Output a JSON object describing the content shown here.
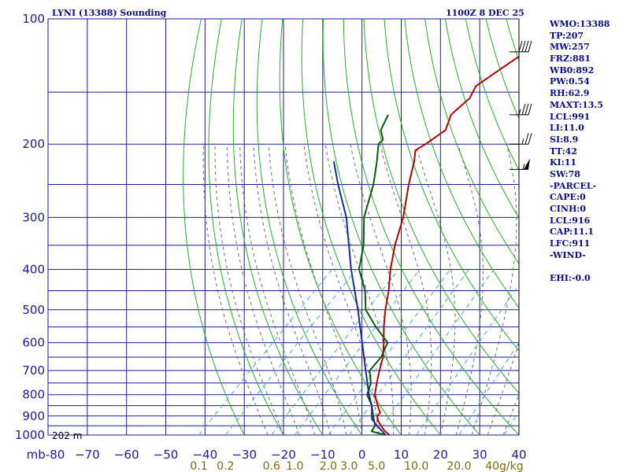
{
  "title": "LYNI (13388) Sounding",
  "datetime": "1100Z  8 DEC 25",
  "station_elevation": "202 m",
  "colors": {
    "grid": "#1a1a9a",
    "dry_adiabat": "#2ea82e",
    "moist_adiabat": "#6a6a6a",
    "mixing_ratio": "#4aa6d6",
    "temperature": "#b00000",
    "dewpoint": "#0a5a0a",
    "parcel": "#1a2a9a",
    "text": "#0a0a8a"
  },
  "indices": [
    "WMO:13388",
    "TP:207",
    "MW:257",
    "FRZ:881",
    "WB0:892",
    "PW:0.54",
    "RH:62.9",
    "MAXT:13.5",
    "LCL:991",
    "LI:11.0",
    "SI:8.9",
    "TT:42",
    "KI:11",
    "SW:78",
    "-PARCEL-",
    "CAPE:0",
    "CINH:0",
    "LCL:916",
    "CAP:11.1",
    "LFC:911",
    "-WIND-",
    "",
    "EHI:-0.0"
  ],
  "chart_data": {
    "type": "line",
    "diagram": "skew-t log-p",
    "title": "LYNI (13388) Sounding",
    "subtitle": "1100Z  8 DEC 25",
    "ylabel": "mb",
    "xlabel": "",
    "y_scale": "log",
    "ylim": [
      1000,
      100
    ],
    "xlim": [
      -80,
      40
    ],
    "pressure_ticks": [
      100,
      200,
      300,
      400,
      500,
      600,
      700,
      800,
      900,
      1000
    ],
    "pressure_tick_labels": [
      "100",
      "200",
      "300",
      "400",
      "500",
      "600",
      "700",
      "800",
      "900",
      "1000"
    ],
    "temperature_ticks": [
      -80,
      -70,
      -60,
      -50,
      -40,
      -30,
      -20,
      -10,
      0,
      10,
      20,
      30,
      40
    ],
    "temperature_tick_labels": [
      "mb-80",
      "−70",
      "−60",
      "−50",
      "−40",
      "−30",
      "−20",
      "−10",
      "0",
      "10",
      "20",
      "30",
      "40"
    ],
    "mixing_ratio_labels": [
      "0.1",
      "0.2",
      "0.6",
      "1.0",
      "2.0",
      "3.0",
      "5.0",
      "10.0",
      "20.0",
      "40g/kg"
    ],
    "mixing_ratio_values": [
      0.1,
      0.2,
      0.6,
      1.0,
      2.0,
      3.0,
      5.0,
      10.0,
      20.0,
      40.0
    ],
    "series": [
      {
        "key": "temperature",
        "values": [
          {
            "p": 1000,
            "t": 7.0
          },
          {
            "p": 975,
            "t": 4.5
          },
          {
            "p": 950,
            "t": 2.5
          },
          {
            "p": 925,
            "t": 0.5
          },
          {
            "p": 900,
            "t": -1.0
          },
          {
            "p": 885,
            "t": -1.0
          },
          {
            "p": 850,
            "t": -3.5
          },
          {
            "p": 800,
            "t": -7.0
          },
          {
            "p": 750,
            "t": -9.5
          },
          {
            "p": 700,
            "t": -12.0
          },
          {
            "p": 650,
            "t": -14.5
          },
          {
            "p": 600,
            "t": -18.0
          },
          {
            "p": 550,
            "t": -22.0
          },
          {
            "p": 500,
            "t": -26.0
          },
          {
            "p": 450,
            "t": -30.0
          },
          {
            "p": 400,
            "t": -35.0
          },
          {
            "p": 350,
            "t": -40.0
          },
          {
            "p": 300,
            "t": -45.0
          },
          {
            "p": 250,
            "t": -52.0
          },
          {
            "p": 220,
            "t": -56.5
          },
          {
            "p": 207,
            "t": -59.0
          },
          {
            "p": 200,
            "t": -58.0
          },
          {
            "p": 185,
            "t": -56.5
          },
          {
            "p": 170,
            "t": -59.0
          },
          {
            "p": 155,
            "t": -58.5
          },
          {
            "p": 145,
            "t": -60.0
          },
          {
            "p": 135,
            "t": -58.5
          },
          {
            "p": 120,
            "t": -56.0
          },
          {
            "p": 110,
            "t": -55.0
          },
          {
            "p": 100,
            "t": -54.0
          }
        ]
      },
      {
        "key": "dewpoint",
        "values": [
          {
            "p": 1000,
            "t": 6.0
          },
          {
            "p": 980,
            "t": 1.5
          },
          {
            "p": 950,
            "t": 1.0
          },
          {
            "p": 925,
            "t": -0.5
          },
          {
            "p": 900,
            "t": -2.0
          },
          {
            "p": 850,
            "t": -5.0
          },
          {
            "p": 800,
            "t": -9.0
          },
          {
            "p": 750,
            "t": -11.0
          },
          {
            "p": 700,
            "t": -14.5
          },
          {
            "p": 650,
            "t": -15.0
          },
          {
            "p": 600,
            "t": -17.0
          },
          {
            "p": 550,
            "t": -24.0
          },
          {
            "p": 500,
            "t": -31.0
          },
          {
            "p": 450,
            "t": -36.0
          },
          {
            "p": 400,
            "t": -43.0
          },
          {
            "p": 350,
            "t": -48.0
          },
          {
            "p": 300,
            "t": -55.0
          },
          {
            "p": 250,
            "t": -61.0
          },
          {
            "p": 220,
            "t": -66.0
          },
          {
            "p": 200,
            "t": -70.0
          },
          {
            "p": 195,
            "t": -70.0
          },
          {
            "p": 185,
            "t": -73.0
          },
          {
            "p": 170,
            "t": -75.0
          }
        ]
      },
      {
        "key": "parcel",
        "values": [
          {
            "p": 1000,
            "t": 6.0
          },
          {
            "p": 950,
            "t": 1.5
          },
          {
            "p": 916,
            "t": -1.5
          },
          {
            "p": 850,
            "t": -5.0
          },
          {
            "p": 800,
            "t": -8.5
          },
          {
            "p": 700,
            "t": -15.5
          },
          {
            "p": 600,
            "t": -23.5
          },
          {
            "p": 500,
            "t": -33.0
          },
          {
            "p": 400,
            "t": -45.0
          },
          {
            "p": 300,
            "t": -59.5
          },
          {
            "p": 250,
            "t": -70.0
          },
          {
            "p": 220,
            "t": -77.0
          }
        ]
      }
    ],
    "wind_barbs": [
      {
        "p": 120,
        "speed_kt": 40
      },
      {
        "p": 170,
        "speed_kt": 35
      },
      {
        "p": 200,
        "speed_kt": 25
      },
      {
        "p": 230,
        "speed_kt": 55
      }
    ],
    "grid": true,
    "legend": "none"
  }
}
